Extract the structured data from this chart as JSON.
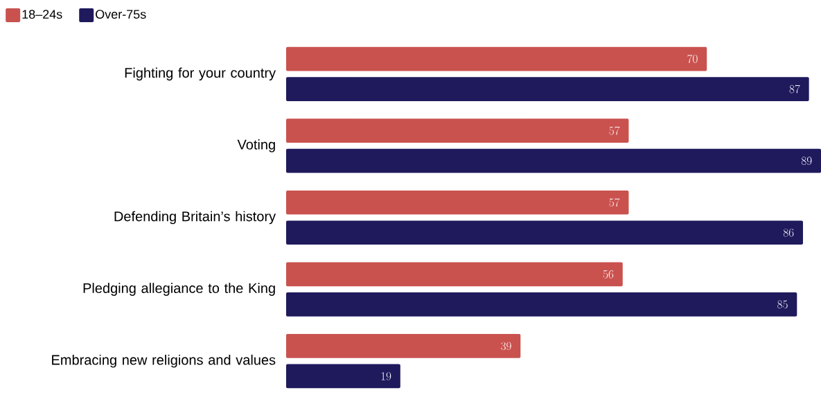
{
  "chart_data": {
    "type": "bar",
    "orientation": "horizontal",
    "data_labels": true,
    "legend": "top left",
    "categories": [
      "Fighting for your country",
      "Voting",
      "Defending Britain’s history",
      "Pledging allegiance to the King",
      "Embracing new religions and values"
    ],
    "series": [
      {
        "name": "18–24s",
        "color": "#c9524f",
        "values": [
          70,
          57,
          57,
          56,
          39
        ]
      },
      {
        "name": "Over-75s",
        "color": "#1f1a5c",
        "values": [
          87,
          89,
          86,
          85,
          19
        ]
      }
    ]
  }
}
